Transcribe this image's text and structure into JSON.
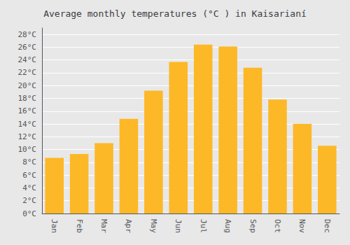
{
  "chart_data": {
    "type": "bar",
    "title": "Average monthly temperatures (°C ) in Kaisarianí",
    "categories": [
      "Jan",
      "Feb",
      "Mar",
      "Apr",
      "May",
      "Jun",
      "Jul",
      "Aug",
      "Sep",
      "Oct",
      "Nov",
      "Dec"
    ],
    "values": [
      8.7,
      9.3,
      11.0,
      14.8,
      19.2,
      23.7,
      26.4,
      26.1,
      22.8,
      17.8,
      14.0,
      10.6
    ],
    "color": "#FDB827",
    "ylim": [
      0,
      29
    ],
    "yticks": [
      {
        "value": 0,
        "label": "0°C"
      },
      {
        "value": 2,
        "label": "2°C"
      },
      {
        "value": 4,
        "label": "4°C"
      },
      {
        "value": 6,
        "label": "6°C"
      },
      {
        "value": 8,
        "label": "8°C"
      },
      {
        "value": 10,
        "label": "10°C"
      },
      {
        "value": 12,
        "label": "12°C"
      },
      {
        "value": 14,
        "label": "14°C"
      },
      {
        "value": 16,
        "label": "16°C"
      },
      {
        "value": 18,
        "label": "18°C"
      },
      {
        "value": 20,
        "label": "20°C"
      },
      {
        "value": 22,
        "label": "22°C"
      },
      {
        "value": 24,
        "label": "24°C"
      },
      {
        "value": 26,
        "label": "26°C"
      },
      {
        "value": 28,
        "label": "28°C"
      }
    ],
    "grid": true
  }
}
